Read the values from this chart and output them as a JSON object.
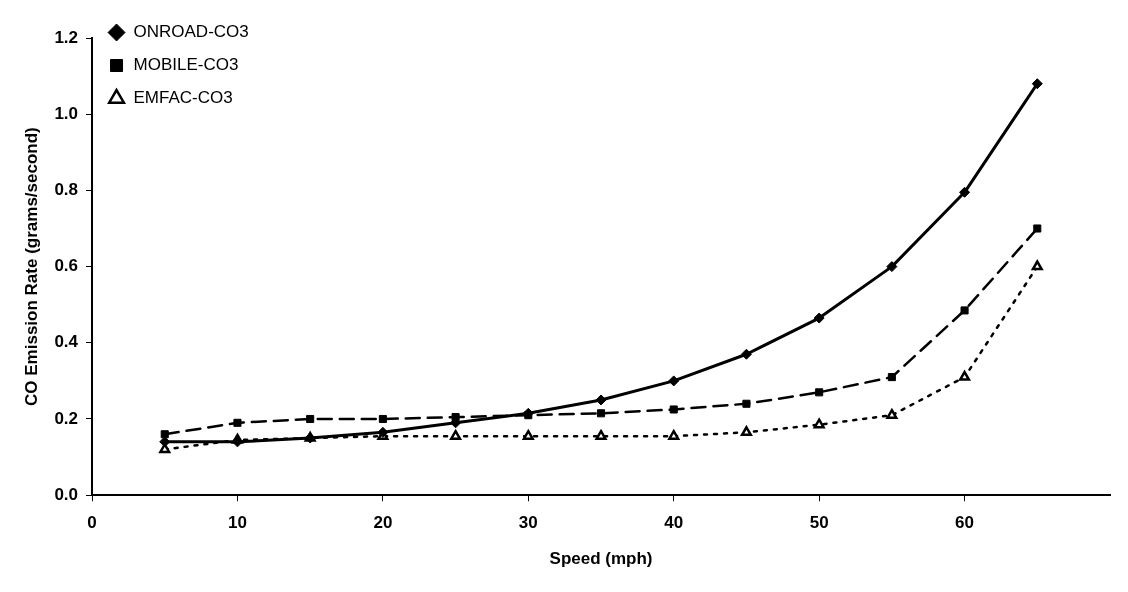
{
  "chart_data": {
    "type": "line",
    "xlabel": "Speed (mph)",
    "ylabel": "CO Emission Rate (grams/second)",
    "x": [
      5,
      10,
      15,
      20,
      25,
      30,
      35,
      40,
      45,
      50,
      55,
      60,
      65
    ],
    "xlim": [
      0,
      70
    ],
    "xticks": [
      0,
      10,
      20,
      30,
      40,
      50,
      60
    ],
    "ylim": [
      0,
      1.2
    ],
    "yticks": [
      {
        "value": 0,
        "label": "0.0"
      },
      {
        "value": 0.2,
        "label": "0.2"
      },
      {
        "value": 0.4,
        "label": "0.4"
      },
      {
        "value": 0.6,
        "label": "0.6"
      },
      {
        "value": 0.8,
        "label": "0.8"
      },
      {
        "value": 1,
        "label": "1.0"
      },
      {
        "value": 1.2,
        "label": "1.2"
      }
    ],
    "grid": false,
    "legend": "top left",
    "series": [
      {
        "name": "ONROAD-CO3",
        "color": "#000000",
        "marker": "diamond",
        "line_style": "solid",
        "values": [
          0.14,
          0.14,
          0.15,
          0.165,
          0.19,
          0.215,
          0.25,
          0.3,
          0.37,
          0.465,
          0.6,
          0.795,
          1.08
        ]
      },
      {
        "name": "MOBILE-CO3",
        "color": "#000000",
        "marker": "square",
        "line_style": "dashed",
        "values": [
          0.16,
          0.19,
          0.2,
          0.2,
          0.205,
          0.21,
          0.215,
          0.225,
          0.24,
          0.27,
          0.31,
          0.485,
          0.7
        ]
      },
      {
        "name": "EMFAC-CO3",
        "color": "#000000",
        "marker": "triangle",
        "line_style": "dotted",
        "values": [
          0.12,
          0.145,
          0.15,
          0.155,
          0.155,
          0.155,
          0.155,
          0.155,
          0.165,
          0.185,
          0.21,
          0.31,
          0.6
        ]
      }
    ]
  }
}
